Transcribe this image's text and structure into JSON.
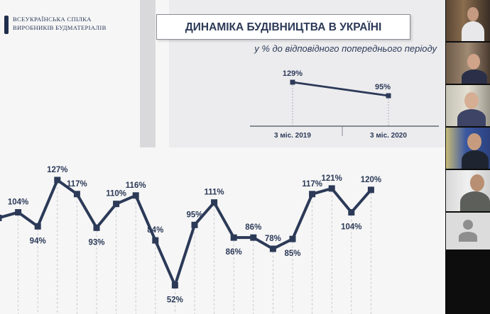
{
  "org": {
    "line1": "ВСЕУКРАЇНСЬКА СПІЛКА",
    "line2": "ВИРОБНИКІВ БУДМАТЕРІАЛІВ"
  },
  "slide": {
    "title": "ДИНАМІКА БУДІВНИЦТВА В УКРАЇНІ",
    "subtitle": "у % до відповідного попереднього періоду"
  },
  "chart_data": [
    {
      "type": "line",
      "categories": [
        "3 міс. 2019",
        "3 міс. 2020"
      ],
      "values": [
        129,
        95
      ],
      "data_labels": [
        "129%",
        "95%"
      ]
    },
    {
      "type": "line",
      "values": [
        100,
        104,
        94,
        127,
        117,
        93,
        110,
        116,
        84,
        52,
        95,
        111,
        86,
        86,
        78,
        85,
        117,
        121,
        104,
        120
      ],
      "data_labels": [
        "",
        "104%",
        "94%",
        "127%",
        "117%",
        "93%",
        "110%",
        "116%",
        "84%",
        "52%",
        "95%",
        "111%",
        "86%",
        "86%",
        "78%",
        "85%",
        "117%",
        "121%",
        "104%",
        "120%"
      ],
      "label_pos": [
        "above",
        "above",
        "below",
        "above",
        "above",
        "below",
        "above",
        "above",
        "above",
        "below",
        "above",
        "above",
        "below",
        "above",
        "above",
        "below",
        "above",
        "above",
        "below",
        "above"
      ]
    }
  ],
  "colors": {
    "line": "#2c3a58",
    "slide_bg": "#f6f6f6",
    "panel_bg": "#ececee"
  },
  "participants": [
    {
      "name_icon": "video-participant-1"
    },
    {
      "name_icon": "video-participant-2"
    },
    {
      "name_icon": "video-participant-3"
    },
    {
      "name_icon": "video-participant-4"
    },
    {
      "name_icon": "video-participant-5"
    },
    {
      "name_icon": "avatar-placeholder-icon"
    }
  ]
}
